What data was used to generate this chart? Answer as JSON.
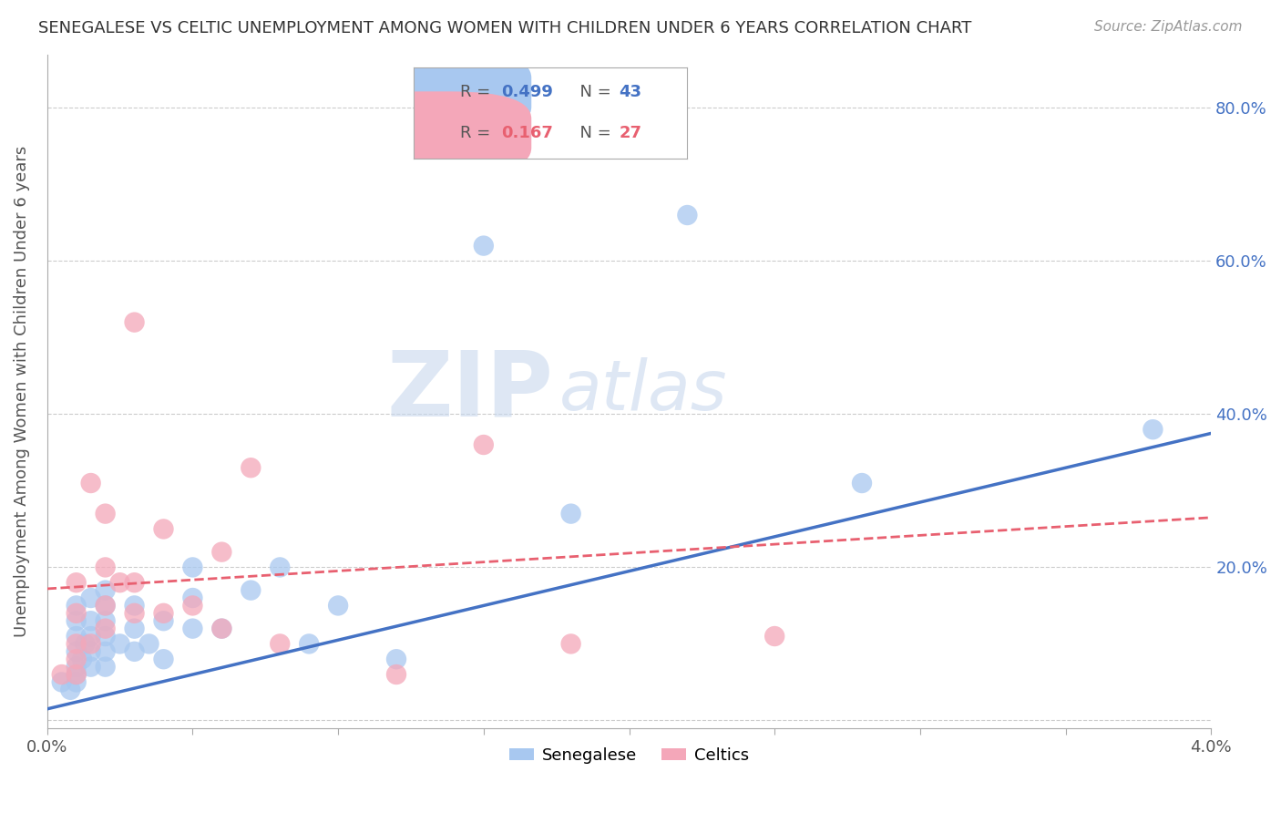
{
  "title": "SENEGALESE VS CELTIC UNEMPLOYMENT AMONG WOMEN WITH CHILDREN UNDER 6 YEARS CORRELATION CHART",
  "source": "Source: ZipAtlas.com",
  "ylabel": "Unemployment Among Women with Children Under 6 years",
  "xlim": [
    0.0,
    0.04
  ],
  "ylim": [
    -0.01,
    0.87
  ],
  "senegalese_color": "#A8C8F0",
  "celtics_color": "#F4A7B9",
  "line_senegalese_color": "#4472C4",
  "line_celtics_color": "#E86070",
  "watermark_zip": "ZIP",
  "watermark_atlas": "atlas",
  "background_color": "#FFFFFF",
  "senegalese_x": [
    0.0005,
    0.0008,
    0.001,
    0.001,
    0.001,
    0.001,
    0.001,
    0.001,
    0.001,
    0.0012,
    0.0013,
    0.0015,
    0.0015,
    0.0015,
    0.0015,
    0.0015,
    0.002,
    0.002,
    0.002,
    0.002,
    0.002,
    0.002,
    0.0025,
    0.003,
    0.003,
    0.003,
    0.0035,
    0.004,
    0.004,
    0.005,
    0.005,
    0.005,
    0.006,
    0.007,
    0.008,
    0.009,
    0.01,
    0.012,
    0.015,
    0.018,
    0.022,
    0.028,
    0.038
  ],
  "senegalese_y": [
    0.05,
    0.04,
    0.05,
    0.06,
    0.07,
    0.09,
    0.11,
    0.13,
    0.15,
    0.08,
    0.1,
    0.07,
    0.09,
    0.11,
    0.13,
    0.16,
    0.07,
    0.09,
    0.11,
    0.13,
    0.15,
    0.17,
    0.1,
    0.09,
    0.12,
    0.15,
    0.1,
    0.08,
    0.13,
    0.12,
    0.16,
    0.2,
    0.12,
    0.17,
    0.2,
    0.1,
    0.15,
    0.08,
    0.62,
    0.27,
    0.66,
    0.31,
    0.38
  ],
  "celtics_x": [
    0.0005,
    0.001,
    0.001,
    0.001,
    0.001,
    0.001,
    0.0015,
    0.0015,
    0.002,
    0.002,
    0.002,
    0.002,
    0.0025,
    0.003,
    0.003,
    0.003,
    0.004,
    0.004,
    0.005,
    0.006,
    0.006,
    0.007,
    0.008,
    0.012,
    0.015,
    0.018,
    0.025
  ],
  "celtics_y": [
    0.06,
    0.06,
    0.08,
    0.1,
    0.14,
    0.18,
    0.1,
    0.31,
    0.12,
    0.15,
    0.2,
    0.27,
    0.18,
    0.14,
    0.18,
    0.52,
    0.14,
    0.25,
    0.15,
    0.12,
    0.22,
    0.33,
    0.1,
    0.06,
    0.36,
    0.1,
    0.11
  ],
  "line_s_x0": 0.0,
  "line_s_x1": 0.04,
  "line_s_y0": 0.015,
  "line_s_y1": 0.375,
  "line_c_x0": 0.0,
  "line_c_x1": 0.04,
  "line_c_y0": 0.172,
  "line_c_y1": 0.265
}
